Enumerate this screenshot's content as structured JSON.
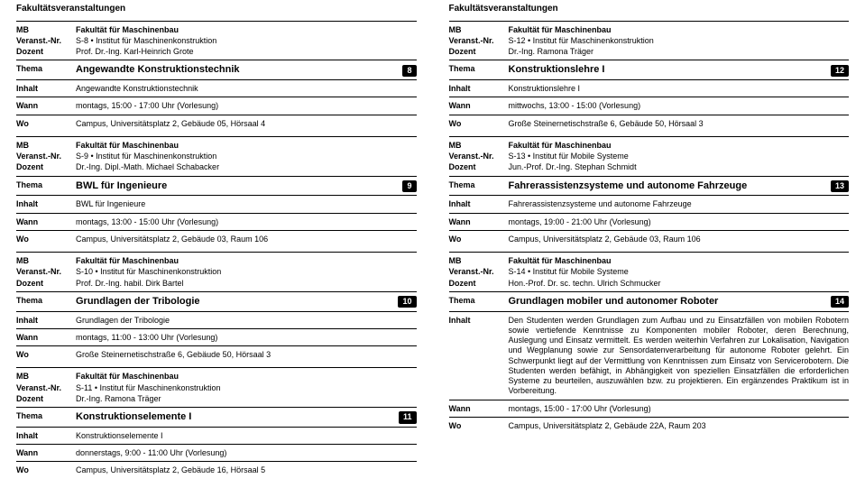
{
  "pageHeader": "Fakultätsveranstaltungen",
  "labels": {
    "tag": "MB",
    "veranstNr": "Veranst.-Nr.",
    "dozent": "Dozent",
    "thema": "Thema",
    "inhalt": "Inhalt",
    "wann": "Wann",
    "wo": "Wo"
  },
  "left": [
    {
      "fakultaet": "Fakultät für Maschinenbau",
      "veranstNr": "S-8 • Institut für Maschinenkonstruktion",
      "dozent": "Prof. Dr.-Ing. Karl-Heinrich Grote",
      "thema": "Angewandte Konstruktionstechnik",
      "badge": "8",
      "inhalt": "Angewandte Konstruktionstechnik",
      "wann": "montags, 15:00 - 17:00 Uhr (Vorlesung)",
      "wo": "Campus, Universitätsplatz 2, Gebäude 05, Hörsaal 4"
    },
    {
      "fakultaet": "Fakultät für Maschinenbau",
      "veranstNr": "S-9 • Institut für Maschinenkonstruktion",
      "dozent": "Dr.-Ing. Dipl.-Math. Michael Schabacker",
      "thema": "BWL für Ingenieure",
      "badge": "9",
      "inhalt": "BWL für Ingenieure",
      "wann": "montags, 13:00 - 15:00 Uhr (Vorlesung)",
      "wo": "Campus, Universitätsplatz 2, Gebäude 03, Raum 106"
    },
    {
      "fakultaet": "Fakultät für Maschinenbau",
      "veranstNr": "S-10 • Institut für Maschinenkonstruktion",
      "dozent": "Prof. Dr.-Ing. habil. Dirk Bartel",
      "thema": "Grundlagen der Tribologie",
      "badge": "10",
      "inhalt": "Grundlagen der Tribologie",
      "wann": "montags, 11:00 - 13:00 Uhr (Vorlesung)",
      "wo": "Große Steinernetischstraße 6, Gebäude 50, Hörsaal 3"
    },
    {
      "fakultaet": "Fakultät für Maschinenbau",
      "veranstNr": "S-11 • Institut für Maschinenkonstruktion",
      "dozent": "Dr.-Ing. Ramona Träger",
      "thema": "Konstruktionselemente I",
      "badge": "11",
      "inhalt": "Konstruktionselemente I",
      "wann": "donnerstags, 9:00 - 11:00 Uhr (Vorlesung)",
      "wo": "Campus, Universitätsplatz 2, Gebäude 16, Hörsaal 5"
    }
  ],
  "right": [
    {
      "fakultaet": "Fakultät für Maschinenbau",
      "veranstNr": "S-12 • Institut für Maschinenkonstruktion",
      "dozent": "Dr.-Ing. Ramona Träger",
      "thema": "Konstruktionslehre I",
      "badge": "12",
      "inhalt": "Konstruktionslehre I",
      "wann": "mittwochs, 13:00 - 15:00 (Vorlesung)",
      "wo": "Große Steinernetischstraße 6, Gebäude 50, Hörsaal 3"
    },
    {
      "fakultaet": "Fakultät für Maschinenbau",
      "veranstNr": "S-13 • Institut für Mobile Systeme",
      "dozent": "Jun.-Prof. Dr.-Ing. Stephan Schmidt",
      "thema": "Fahrerassistenzsysteme und autonome Fahrzeuge",
      "badge": "13",
      "inhalt": "Fahrerassistenzsysteme und autonome Fahrzeuge",
      "wann": "montags, 19:00 - 21:00 Uhr (Vorlesung)",
      "wo": "Campus, Universitätsplatz 2, Gebäude 03, Raum 106"
    },
    {
      "fakultaet": "Fakultät für Maschinenbau",
      "veranstNr": "S-14 • Institut für Mobile Systeme",
      "dozent": "Hon.-Prof. Dr. sc. techn. Ulrich Schmucker",
      "thema": "Grundlagen mobiler und autonomer Roboter",
      "badge": "14",
      "inhalt": "Den Studenten werden Grundlagen zum Aufbau und zu Einsatzfällen von mobilen Robotern sowie vertiefende Kenntnisse zu Komponenten mobiler Roboter, deren Berechnung, Auslegung und Einsatz vermittelt. Es werden weiterhin Verfahren zur Lokalisation, Navigation und Wegplanung sowie zur Sensordatenverarbeitung für autonome Roboter gelehrt. Ein Schwerpunkt liegt auf der Vermittlung von Kenntnissen zum Einsatz von Servicerobotern. Die Studenten werden befähigt, in Abhängigkeit von speziellen Einsatzfällen die erforderlichen Systeme zu beurteilen, auszuwählen bzw. zu projektieren. Ein ergänzendes Praktikum ist in Vorbereitung.",
      "wann": "montags, 15:00 - 17:00 Uhr (Vorlesung)",
      "wo": "Campus, Universitätsplatz 2, Gebäude 22A, Raum 203"
    }
  ]
}
